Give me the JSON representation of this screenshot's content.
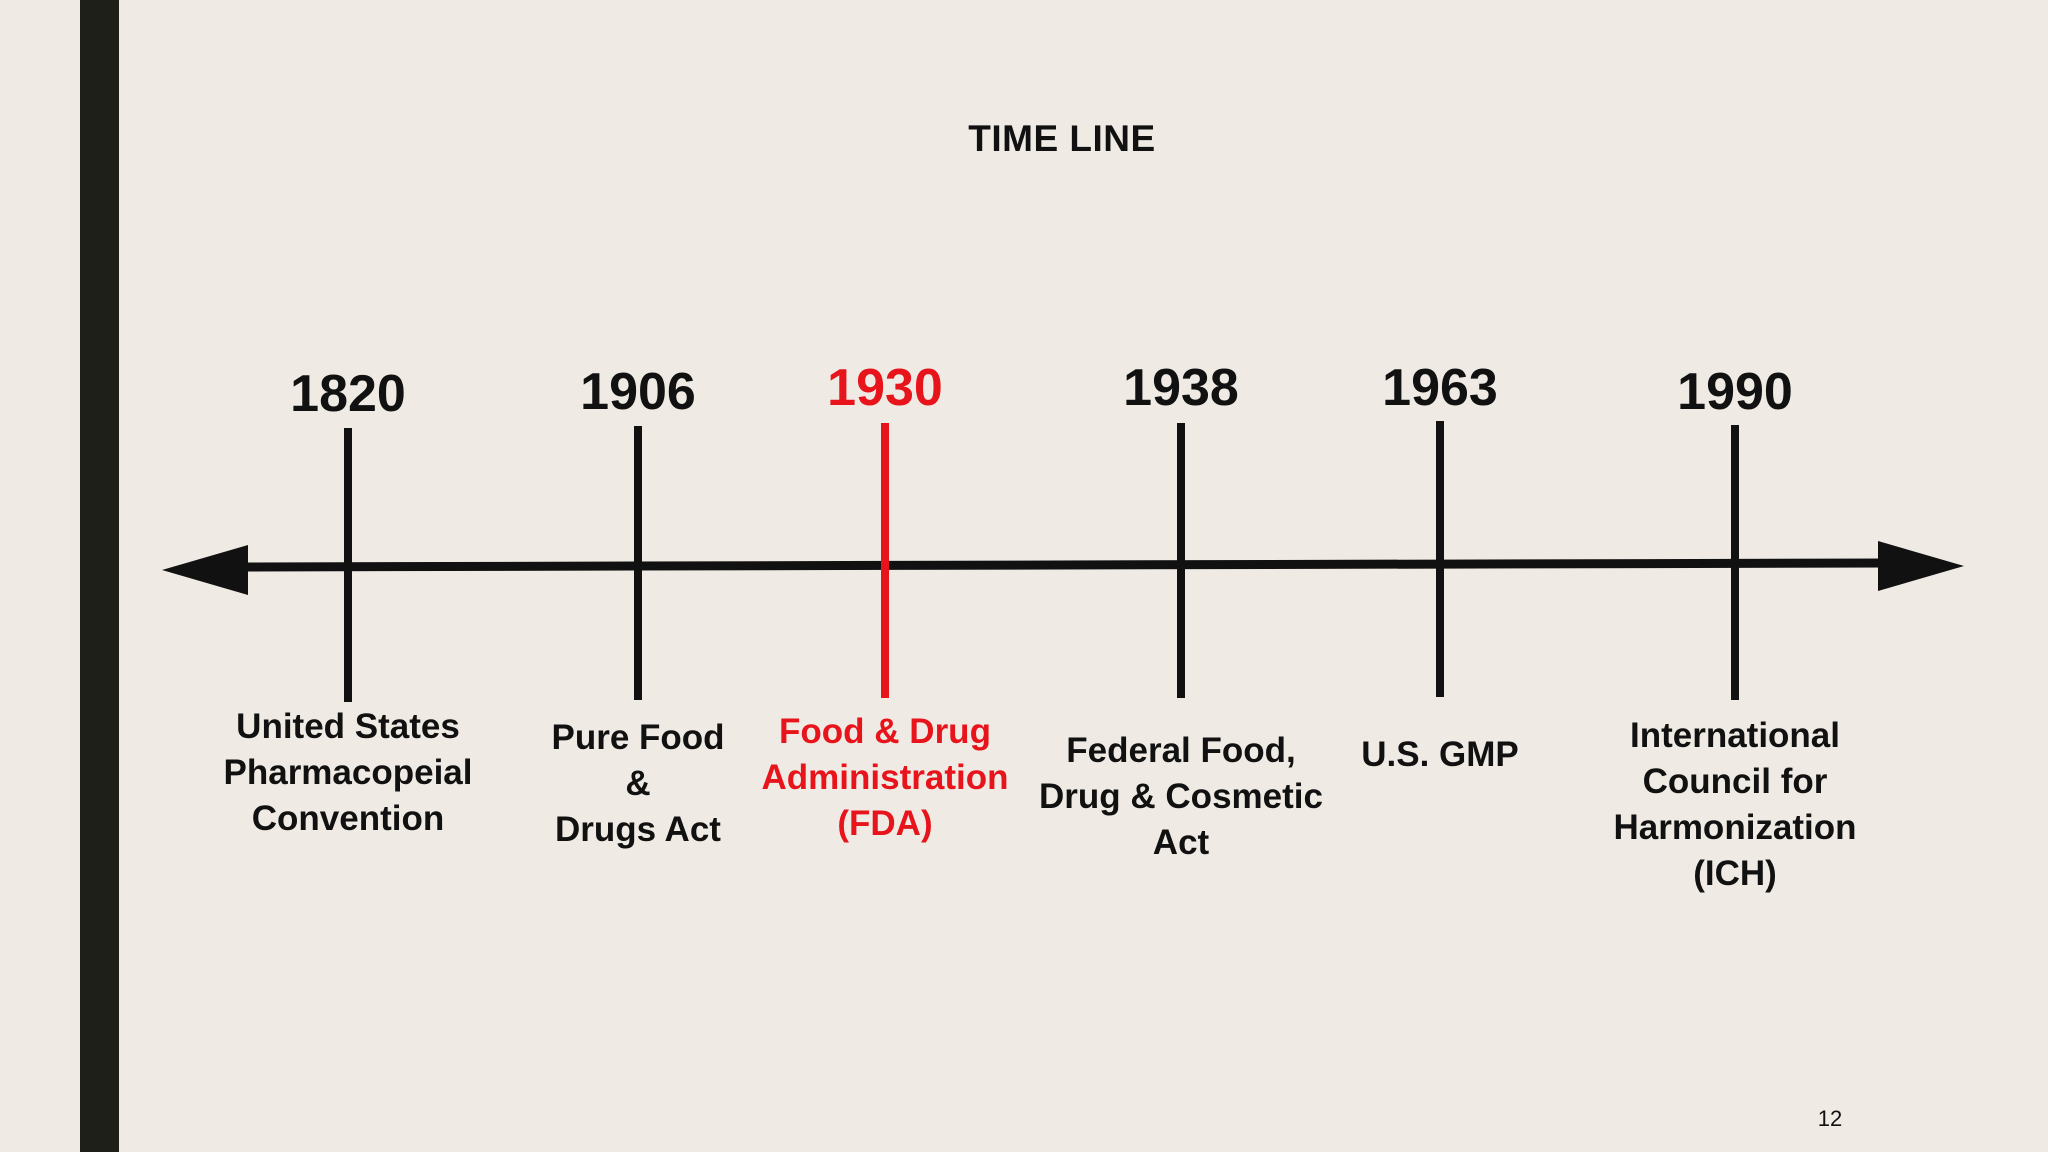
{
  "slide": {
    "title": "TIME LINE",
    "page_number": "12",
    "colors": {
      "background": "#efebe4",
      "side_bar": "#1e1f18",
      "text": "#111111",
      "highlight": "#e8141b"
    }
  },
  "timeline": {
    "direction": "bidirectional-arrow",
    "events": [
      {
        "year": "1820",
        "label_lines": [
          "United States",
          "Pharmacopeial",
          "Convention"
        ],
        "highlight": false
      },
      {
        "year": "1906",
        "label_lines": [
          "Pure Food",
          "&",
          "Drugs Act"
        ],
        "highlight": false
      },
      {
        "year": "1930",
        "label_lines": [
          "Food & Drug",
          "Administration",
          "(FDA)"
        ],
        "highlight": true
      },
      {
        "year": "1938",
        "label_lines": [
          "Federal Food,",
          "Drug & Cosmetic",
          "Act"
        ],
        "highlight": false
      },
      {
        "year": "1963",
        "label_lines": [
          "U.S. GMP"
        ],
        "highlight": false
      },
      {
        "year": "1990",
        "label_lines": [
          "International",
          "Council for",
          "Harmonization",
          "(ICH)"
        ],
        "highlight": false
      }
    ]
  }
}
